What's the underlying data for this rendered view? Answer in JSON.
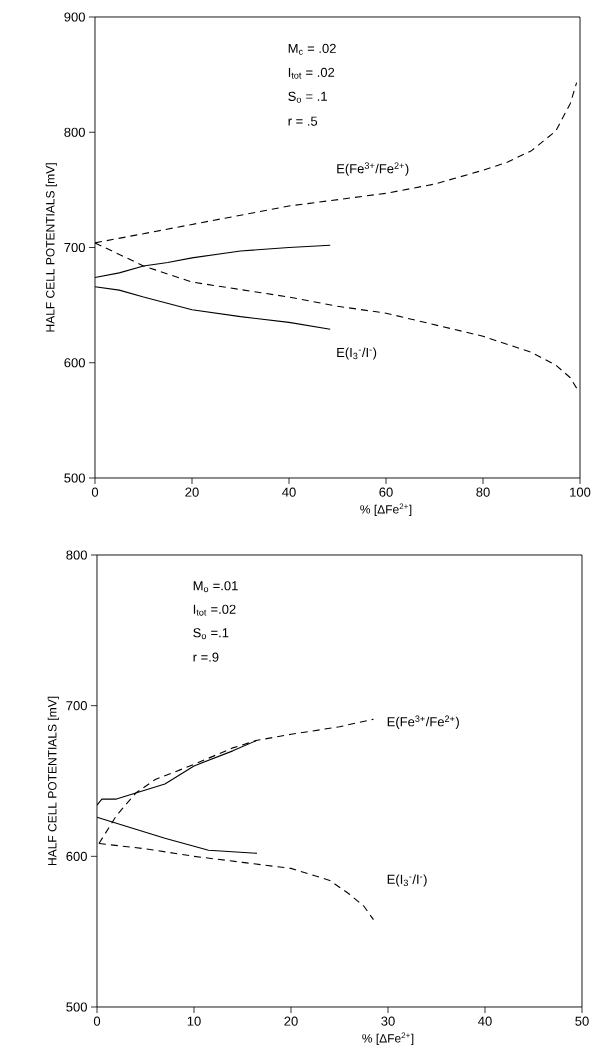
{
  "chart_data": [
    {
      "type": "line",
      "xlabel": "% [ΔFe$^{2+}$]",
      "ylabel": "HALF CELL POTENTIALS [mV]",
      "xlim": [
        0,
        100
      ],
      "ylim": [
        500,
        900
      ],
      "xticks": [
        0,
        20,
        40,
        60,
        80,
        100
      ],
      "yticks": [
        500,
        600,
        700,
        800,
        900
      ],
      "annotations": [
        "M$_{c}$ = .02",
        "I$_{tot}$ = .02",
        "S$_{o}$ = .1",
        "r = .5"
      ],
      "series": [
        {
          "name": "E(Fe$^{3+}$/Fe$^{2+}$)",
          "color": "#000000",
          "line_style": "dashed",
          "x": [
            0,
            20,
            40,
            60,
            70,
            80,
            85,
            90,
            95,
            98,
            99.3
          ],
          "values": [
            704,
            720,
            736,
            747,
            755,
            767,
            774,
            784,
            801,
            825,
            843
          ]
        },
        {
          "name": "E(I$_{3}$$^{-}$/I$^{-}$)",
          "color": "#000000",
          "line_style": "dashed",
          "x": [
            0,
            10,
            20,
            40,
            50,
            60,
            80,
            90,
            95,
            98,
            99.3
          ],
          "values": [
            704,
            684,
            670,
            657,
            649,
            643,
            623,
            609,
            598,
            587,
            578
          ]
        },
        {
          "color": "#000000",
          "line_style": "solid",
          "x": [
            0,
            5,
            10,
            15,
            20,
            30,
            40,
            48.5
          ],
          "values": [
            674,
            678,
            684,
            687,
            691,
            697,
            700,
            702
          ]
        },
        {
          "color": "#000000",
          "line_style": "solid",
          "x": [
            0,
            5,
            10,
            20,
            30,
            40,
            48.5
          ],
          "values": [
            666,
            663,
            657,
            646,
            640,
            635,
            629
          ]
        }
      ]
    },
    {
      "type": "line",
      "xlabel": "% [ΔFe$^{2+}$]",
      "ylabel": "HALF CELL POTENTIALS [mV]",
      "xlim": [
        0,
        50
      ],
      "ylim": [
        500,
        800
      ],
      "xticks": [
        0,
        10,
        20,
        30,
        40,
        50
      ],
      "yticks": [
        500,
        600,
        700,
        800
      ],
      "annotations": [
        "M$_{o}$ =.01",
        "I$_{tot}$ =.02",
        "S$_{o}$ =.1",
        "r =.9"
      ],
      "series": [
        {
          "name": "E(Fe$^{3+}$/Fe$^{2+}$)",
          "color": "#000000",
          "line_style": "dashed",
          "x": [
            0.2,
            2,
            4,
            6,
            10,
            14,
            16.5,
            20,
            25,
            28.5
          ],
          "values": [
            608.5,
            627,
            642,
            651,
            661,
            672,
            677,
            681,
            686,
            691
          ]
        },
        {
          "name": "E(I$_{3}$$^{-}$/I$^{-}$)",
          "color": "#000000",
          "line_style": "dashed",
          "x": [
            0.2,
            5,
            10,
            15,
            20,
            24,
            26,
            27.5,
            28.5
          ],
          "values": [
            608.5,
            605,
            600,
            596,
            592,
            584,
            575,
            567,
            558
          ]
        },
        {
          "color": "#000000",
          "line_style": "solid",
          "x": [
            0,
            0.5,
            2,
            3,
            5,
            7,
            10,
            14,
            16.5
          ],
          "values": [
            634,
            638,
            638,
            640,
            644,
            648,
            660,
            670,
            677
          ]
        },
        {
          "color": "#000000",
          "line_style": "solid",
          "x": [
            0,
            3,
            7,
            11.5,
            16.5
          ],
          "values": [
            626,
            620,
            612,
            604,
            602
          ]
        }
      ]
    }
  ]
}
